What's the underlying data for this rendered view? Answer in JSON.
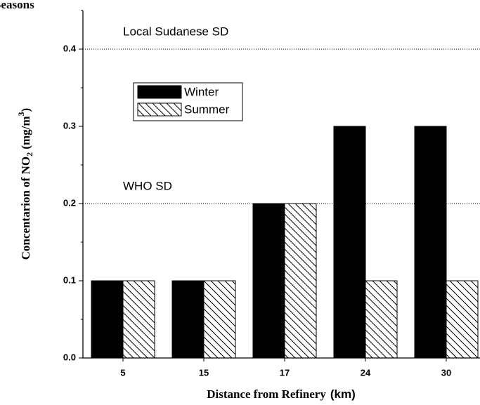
{
  "chart_data": {
    "type": "bar",
    "title": "Seasons",
    "categories": [
      "5",
      "15",
      "17",
      "24",
      "30"
    ],
    "series": [
      {
        "name": "Winter",
        "color": "#000000",
        "pattern": "solid",
        "values": [
          0.1,
          0.1,
          0.2,
          0.3,
          0.3
        ]
      },
      {
        "name": "Summer",
        "color": "#000000",
        "pattern": "hatch",
        "values": [
          0.1,
          0.1,
          0.2,
          0.1,
          0.1
        ]
      }
    ],
    "xlabel_parts": [
      "Distance from Refinery",
      "(km)"
    ],
    "ylabel_parts": [
      "Concentarion of NO",
      "2",
      " (mg/m",
      "3",
      ")"
    ],
    "ylim": [
      0,
      0.45
    ],
    "yticks": [
      {
        "value": 0,
        "label": "0.0"
      },
      0.1,
      0.2,
      0.3,
      0.4
    ],
    "yminorticks": [
      0.05,
      0.15,
      0.25,
      0.35,
      0.45
    ],
    "reference_lines": [
      {
        "label": "Local Sudanese SD",
        "value": 0.4
      },
      {
        "label": "WHO SD",
        "value": 0.2
      }
    ],
    "legend": "upper left"
  }
}
